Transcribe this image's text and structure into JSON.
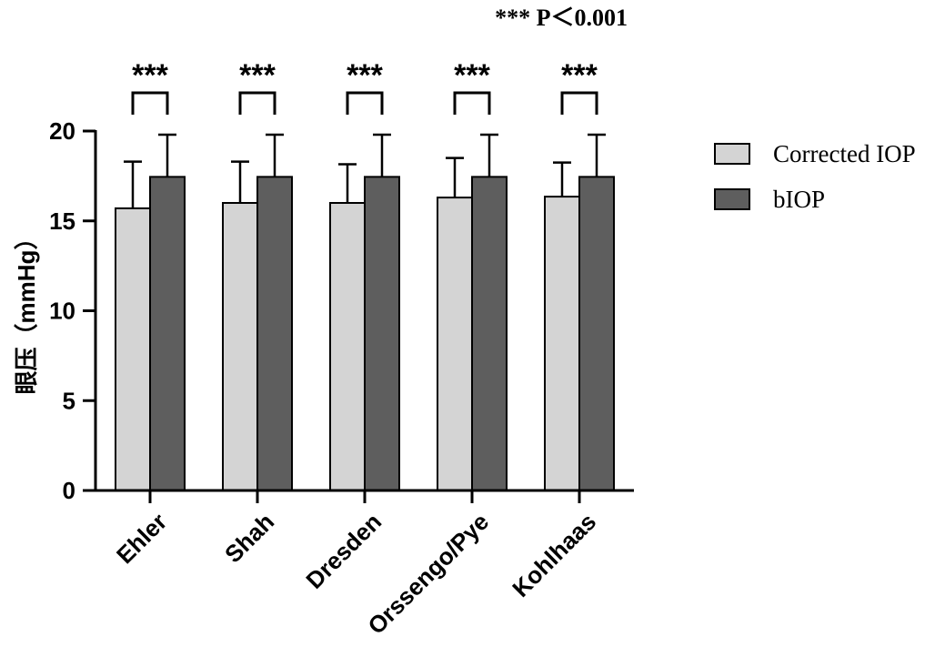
{
  "chart_data": {
    "type": "bar",
    "categories": [
      "Ehler",
      "Shah",
      "Dresden",
      "Orssengo/Pye",
      "Kohlhaas"
    ],
    "series": [
      {
        "name": "Corrected IOP",
        "values": [
          15.7,
          16.0,
          16.0,
          16.3,
          16.35
        ],
        "errors": [
          2.6,
          2.3,
          2.15,
          2.2,
          1.9
        ],
        "color": "#d4d4d4"
      },
      {
        "name": "bIOP",
        "values": [
          17.45,
          17.45,
          17.45,
          17.45,
          17.45
        ],
        "errors": [
          2.35,
          2.35,
          2.35,
          2.35,
          2.35
        ],
        "color": "#5e5e5e"
      }
    ],
    "ylabel": "眼压（mmHg）",
    "xlabel": "",
    "ylim": [
      0,
      20
    ],
    "yticks": [
      0,
      5,
      10,
      15,
      20
    ],
    "significance": [
      "***",
      "***",
      "***",
      "***",
      "***"
    ],
    "annotation": "*** P＜0.001",
    "legend_position": "right"
  }
}
